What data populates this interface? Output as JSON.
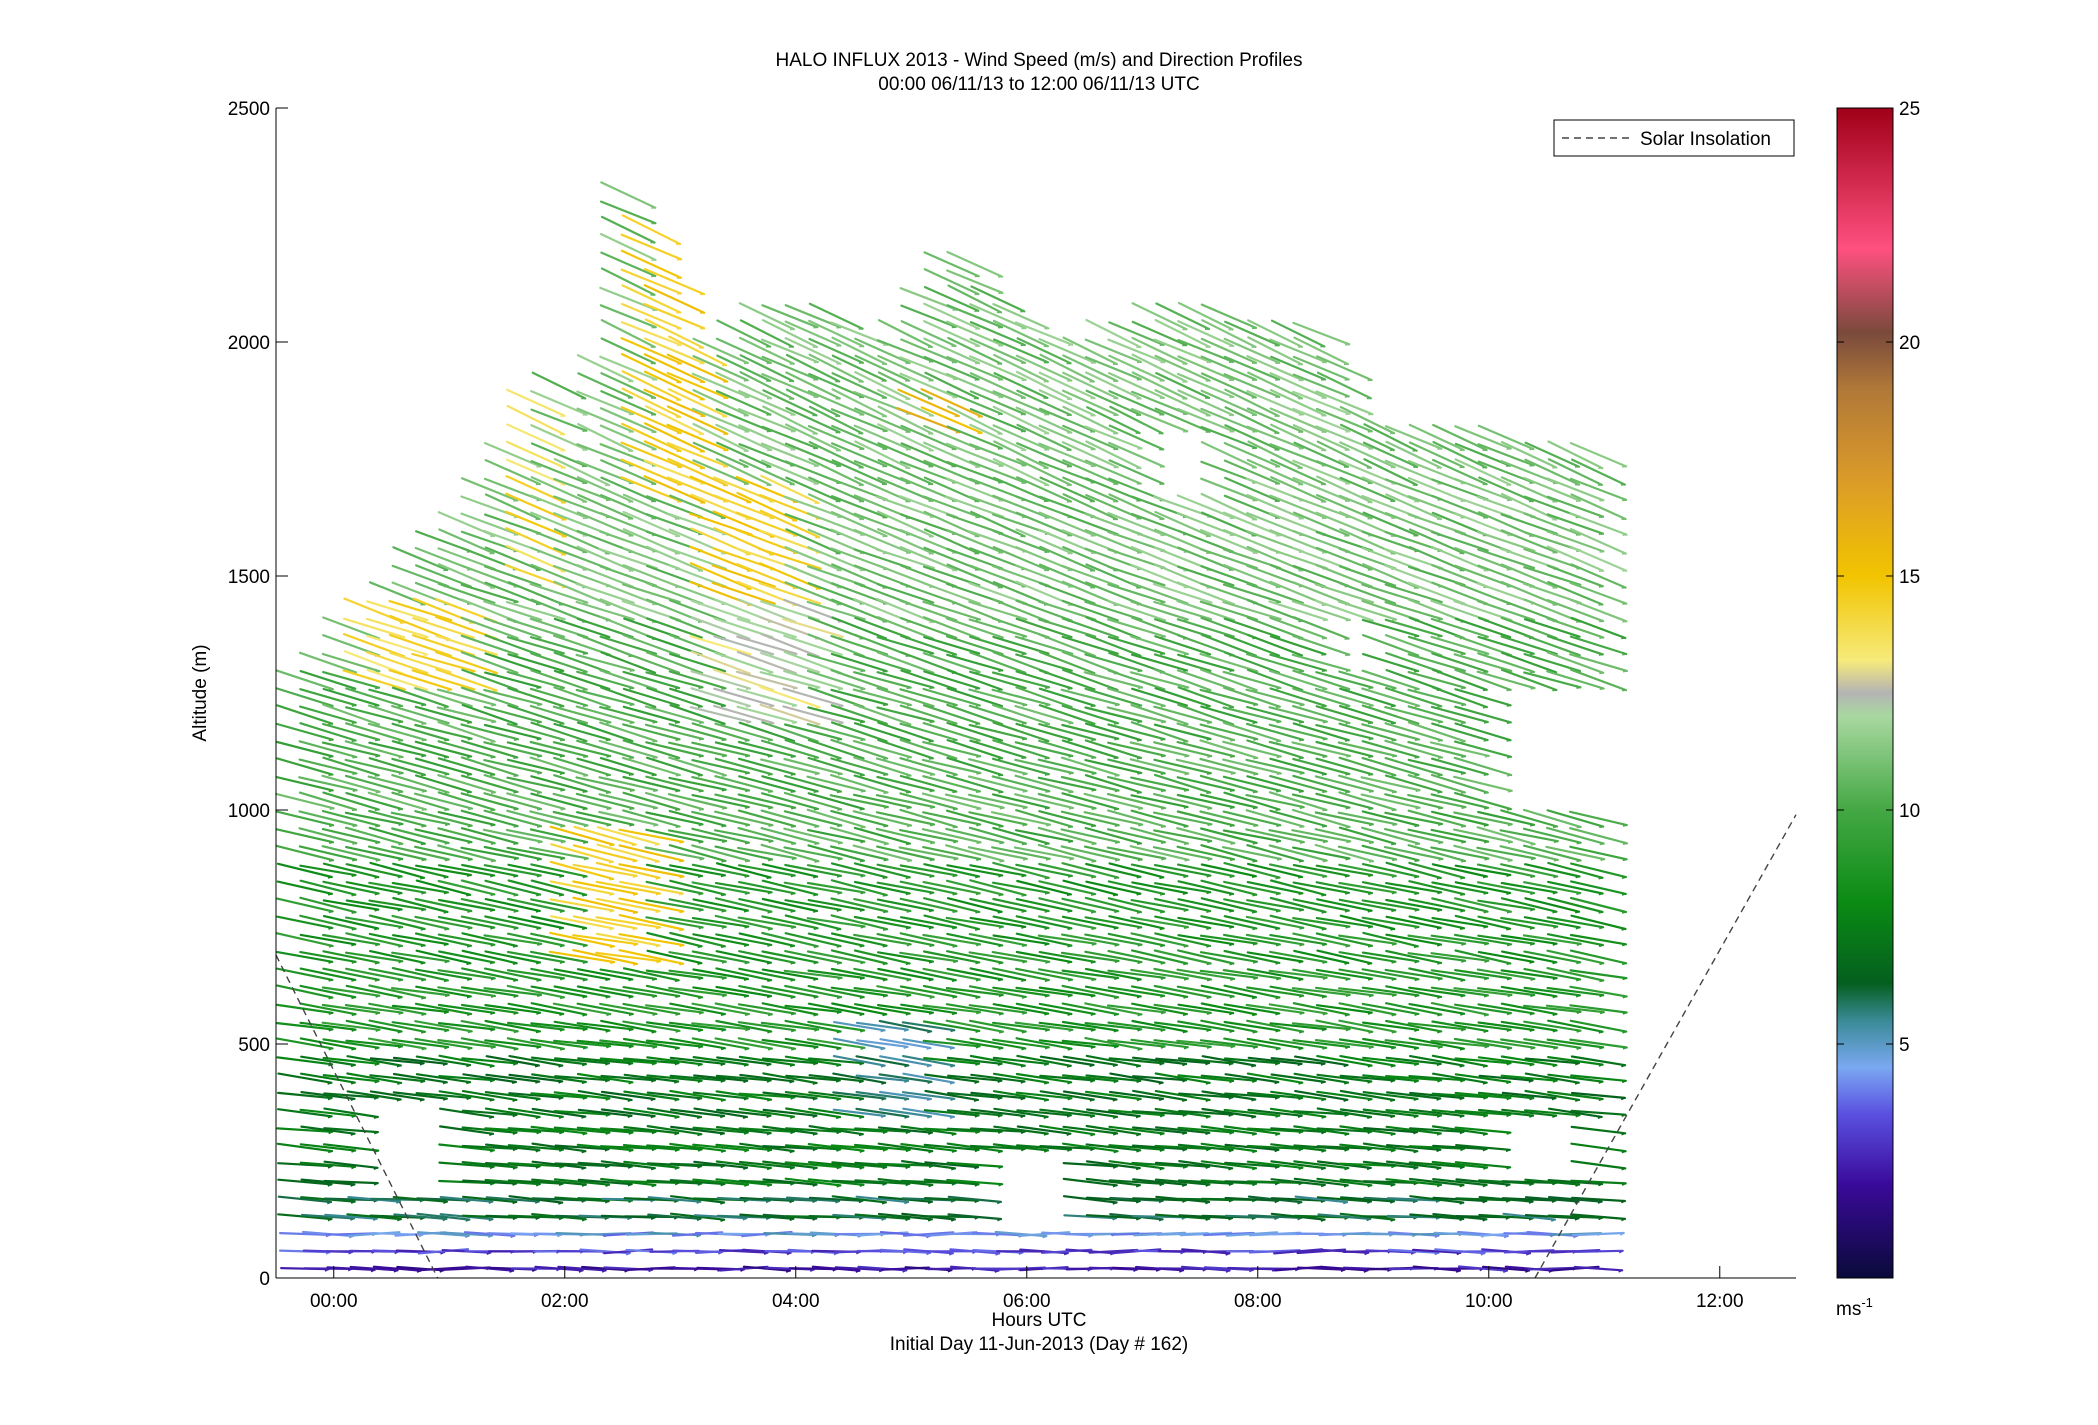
{
  "chart_data": {
    "type": "wind-barb-profile",
    "title": "HALO INFLUX 2013 - Wind Speed (m/s) and Direction Profiles",
    "subtitle": "00:00 06/11/13 to 12:00 06/11/13  UTC",
    "xlabel": "Hours UTC",
    "xlabel2": "Initial Day 11-Jun-2013 (Day # 162)",
    "ylabel": "Altitude (m)",
    "xlim": [
      -0.5,
      12.66
    ],
    "ylim": [
      0,
      2500
    ],
    "x_ticks": [
      {
        "value": 0,
        "label": "00:00"
      },
      {
        "value": 2,
        "label": "02:00"
      },
      {
        "value": 4,
        "label": "04:00"
      },
      {
        "value": 6,
        "label": "06:00"
      },
      {
        "value": 8,
        "label": "08:00"
      },
      {
        "value": 10,
        "label": "10:00"
      },
      {
        "value": 12,
        "label": "12:00"
      }
    ],
    "y_ticks": [
      {
        "value": 0,
        "label": "0"
      },
      {
        "value": 500,
        "label": "500"
      },
      {
        "value": 1000,
        "label": "1000"
      },
      {
        "value": 1500,
        "label": "1500"
      },
      {
        "value": 2000,
        "label": "2000"
      },
      {
        "value": 2500,
        "label": "2500"
      }
    ],
    "legend": {
      "label": "Solar Insolation",
      "placement": "top-right",
      "style": "dashed",
      "color": "#444444"
    },
    "colorbar": {
      "min": 0,
      "max": 25,
      "ticks": [
        {
          "value": 5,
          "label": "5"
        },
        {
          "value": 10,
          "label": "10"
        },
        {
          "value": 15,
          "label": "15"
        },
        {
          "value": 20,
          "label": "20"
        },
        {
          "value": 25,
          "label": "25"
        }
      ],
      "unit_base": "ms",
      "unit_exp": "-1",
      "stops": [
        {
          "v": 0,
          "color": "#0a0a3a"
        },
        {
          "v": 2,
          "color": "#3a0a9a"
        },
        {
          "v": 3.5,
          "color": "#5a50e0"
        },
        {
          "v": 4.5,
          "color": "#7aa8f2"
        },
        {
          "v": 5.5,
          "color": "#3a8a96"
        },
        {
          "v": 6.3,
          "color": "#045f1e"
        },
        {
          "v": 8,
          "color": "#0a8a14"
        },
        {
          "v": 10,
          "color": "#44a844"
        },
        {
          "v": 12,
          "color": "#a8d8a0"
        },
        {
          "v": 12.5,
          "color": "#b4b4b4"
        },
        {
          "v": 13.2,
          "color": "#f6ea7a"
        },
        {
          "v": 15,
          "color": "#f2c400"
        },
        {
          "v": 17,
          "color": "#dc9c28"
        },
        {
          "v": 19,
          "color": "#b07838"
        },
        {
          "v": 20.2,
          "color": "#7a4a3c"
        },
        {
          "v": 22,
          "color": "#ff5080"
        },
        {
          "v": 25,
          "color": "#a00018"
        }
      ]
    },
    "solar_insolation": [
      {
        "x": [
          -0.5,
          0.9
        ],
        "y": [
          690,
          0
        ]
      },
      {
        "x": [
          10.4,
          12.66
        ],
        "y": [
          0,
          990
        ]
      }
    ],
    "profiles": {
      "time_start": -0.25,
      "time_end": 11.0,
      "time_step": 0.2,
      "altitude_step": 37,
      "speed_unit": "m/s",
      "column_tops": [
        {
          "t": -0.25,
          "top": 1310
        },
        {
          "t": 0.2,
          "top": 1400
        },
        {
          "t": 0.5,
          "top": 1480
        },
        {
          "t": 1.2,
          "top": 1650
        },
        {
          "t": 1.5,
          "top": 1750
        },
        {
          "t": 1.9,
          "top": 1950
        },
        {
          "t": 2.2,
          "top": 1700
        },
        {
          "t": 2.55,
          "top": 2350
        },
        {
          "t": 2.8,
          "top": 2250
        },
        {
          "t": 3.2,
          "top": 1950
        },
        {
          "t": 3.6,
          "top": 2050
        },
        {
          "t": 4.2,
          "top": 2090
        },
        {
          "t": 4.8,
          "top": 2000
        },
        {
          "t": 5.0,
          "top": 2060
        },
        {
          "t": 5.3,
          "top": 2170
        },
        {
          "t": 5.6,
          "top": 2170
        },
        {
          "t": 6.0,
          "top": 2050
        },
        {
          "t": 6.5,
          "top": 1990
        },
        {
          "t": 7.0,
          "top": 2050
        },
        {
          "t": 7.4,
          "top": 2080
        },
        {
          "t": 8.0,
          "top": 2040
        },
        {
          "t": 8.6,
          "top": 2030
        },
        {
          "t": 9.0,
          "top": 1830
        },
        {
          "t": 9.5,
          "top": 1810
        },
        {
          "t": 10.0,
          "top": 1800
        },
        {
          "t": 11.0,
          "top": 1780
        }
      ],
      "speed_bands": [
        {
          "alt_max": 40,
          "speed": 2.2
        },
        {
          "alt_max": 80,
          "speed": 3.2
        },
        {
          "alt_max": 130,
          "speed": 4.5
        },
        {
          "alt_max": 200,
          "speed": 6.3
        },
        {
          "alt_max": 500,
          "speed": 7.2
        },
        {
          "alt_max": 900,
          "speed": 8.8
        },
        {
          "alt_max": 1400,
          "speed": 10.2
        },
        {
          "alt_max": 2500,
          "speed": 11.0
        }
      ],
      "fast_zones": [
        {
          "t0": 2.0,
          "t1": 2.8,
          "a0": 650,
          "a1": 950,
          "speed": 14.5
        },
        {
          "t0": 2.6,
          "t1": 3.2,
          "a0": 1650,
          "a1": 2300,
          "speed": 14.5
        },
        {
          "t0": 3.2,
          "t1": 4.1,
          "a0": 1450,
          "a1": 1700,
          "speed": 14.5
        },
        {
          "t0": 0.2,
          "t1": 1.2,
          "a0": 1250,
          "a1": 1450,
          "speed": 14.0
        },
        {
          "t0": 1.7,
          "t1": 1.9,
          "a0": 1500,
          "a1": 1900,
          "speed": 14.0
        },
        {
          "t0": 3.2,
          "t1": 4.2,
          "a0": 1200,
          "a1": 1450,
          "speed": 12.5
        },
        {
          "t0": 5.0,
          "t1": 5.4,
          "a0": 1800,
          "a1": 1900,
          "speed": 15.5
        },
        {
          "t0": 4.5,
          "t1": 5.2,
          "a0": 350,
          "a1": 550,
          "speed": 5.5
        }
      ],
      "direction_rule": "arrows point east at low levels and veer to east-south-east aloft",
      "missing_regions": [
        {
          "t0": 0.2,
          "t1": 1.0,
          "a0": 180,
          "a1": 380
        },
        {
          "t0": 5.6,
          "t1": 6.4,
          "a0": 130,
          "a1": 260
        },
        {
          "t0": 10.0,
          "t1": 10.8,
          "a0": 210,
          "a1": 330
        },
        {
          "t0": 10.1,
          "t1": 11.1,
          "a0": 1000,
          "a1": 1260
        },
        {
          "t0": 7.0,
          "t1": 7.6,
          "a0": 1650,
          "a1": 1800
        },
        {
          "t0": 8.6,
          "t1": 9.1,
          "a0": 1280,
          "a1": 1420
        }
      ]
    }
  }
}
